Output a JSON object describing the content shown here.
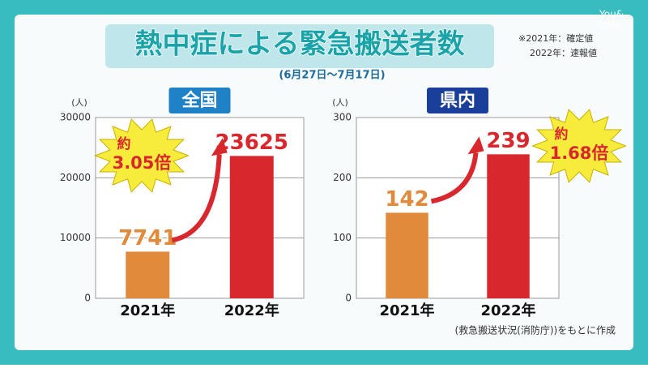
{
  "header": {
    "title": "熱中症による緊急搬送者数",
    "subtitle": "(6月27日〜7月17日)",
    "note": [
      "※2021年：確定値",
      "2022年：速報値"
    ]
  },
  "source": "(救急搬送状況(消防庁))をもとに作成",
  "logo": [
    "You&",
    "UMK"
  ],
  "chart_data": [
    {
      "type": "bar",
      "title": "全国",
      "ylabel": "(人)",
      "categories": [
        "2021年",
        "2022年"
      ],
      "values": [
        7741,
        23625
      ],
      "colors": [
        "#e08a3c",
        "#d8282e"
      ],
      "ylim": [
        0,
        30000
      ],
      "yticks": [
        0,
        10000,
        20000,
        30000
      ],
      "grid": true,
      "annotation": [
        "約",
        "3.05倍"
      ]
    },
    {
      "type": "bar",
      "title": "県内",
      "ylabel": "(人)",
      "categories": [
        "2021年",
        "2022年"
      ],
      "values": [
        142,
        239
      ],
      "colors": [
        "#e08a3c",
        "#d8282e"
      ],
      "ylim": [
        0,
        300
      ],
      "yticks": [
        0,
        100,
        200,
        300
      ],
      "grid": true,
      "annotation": [
        "約",
        "1.68倍"
      ]
    }
  ]
}
